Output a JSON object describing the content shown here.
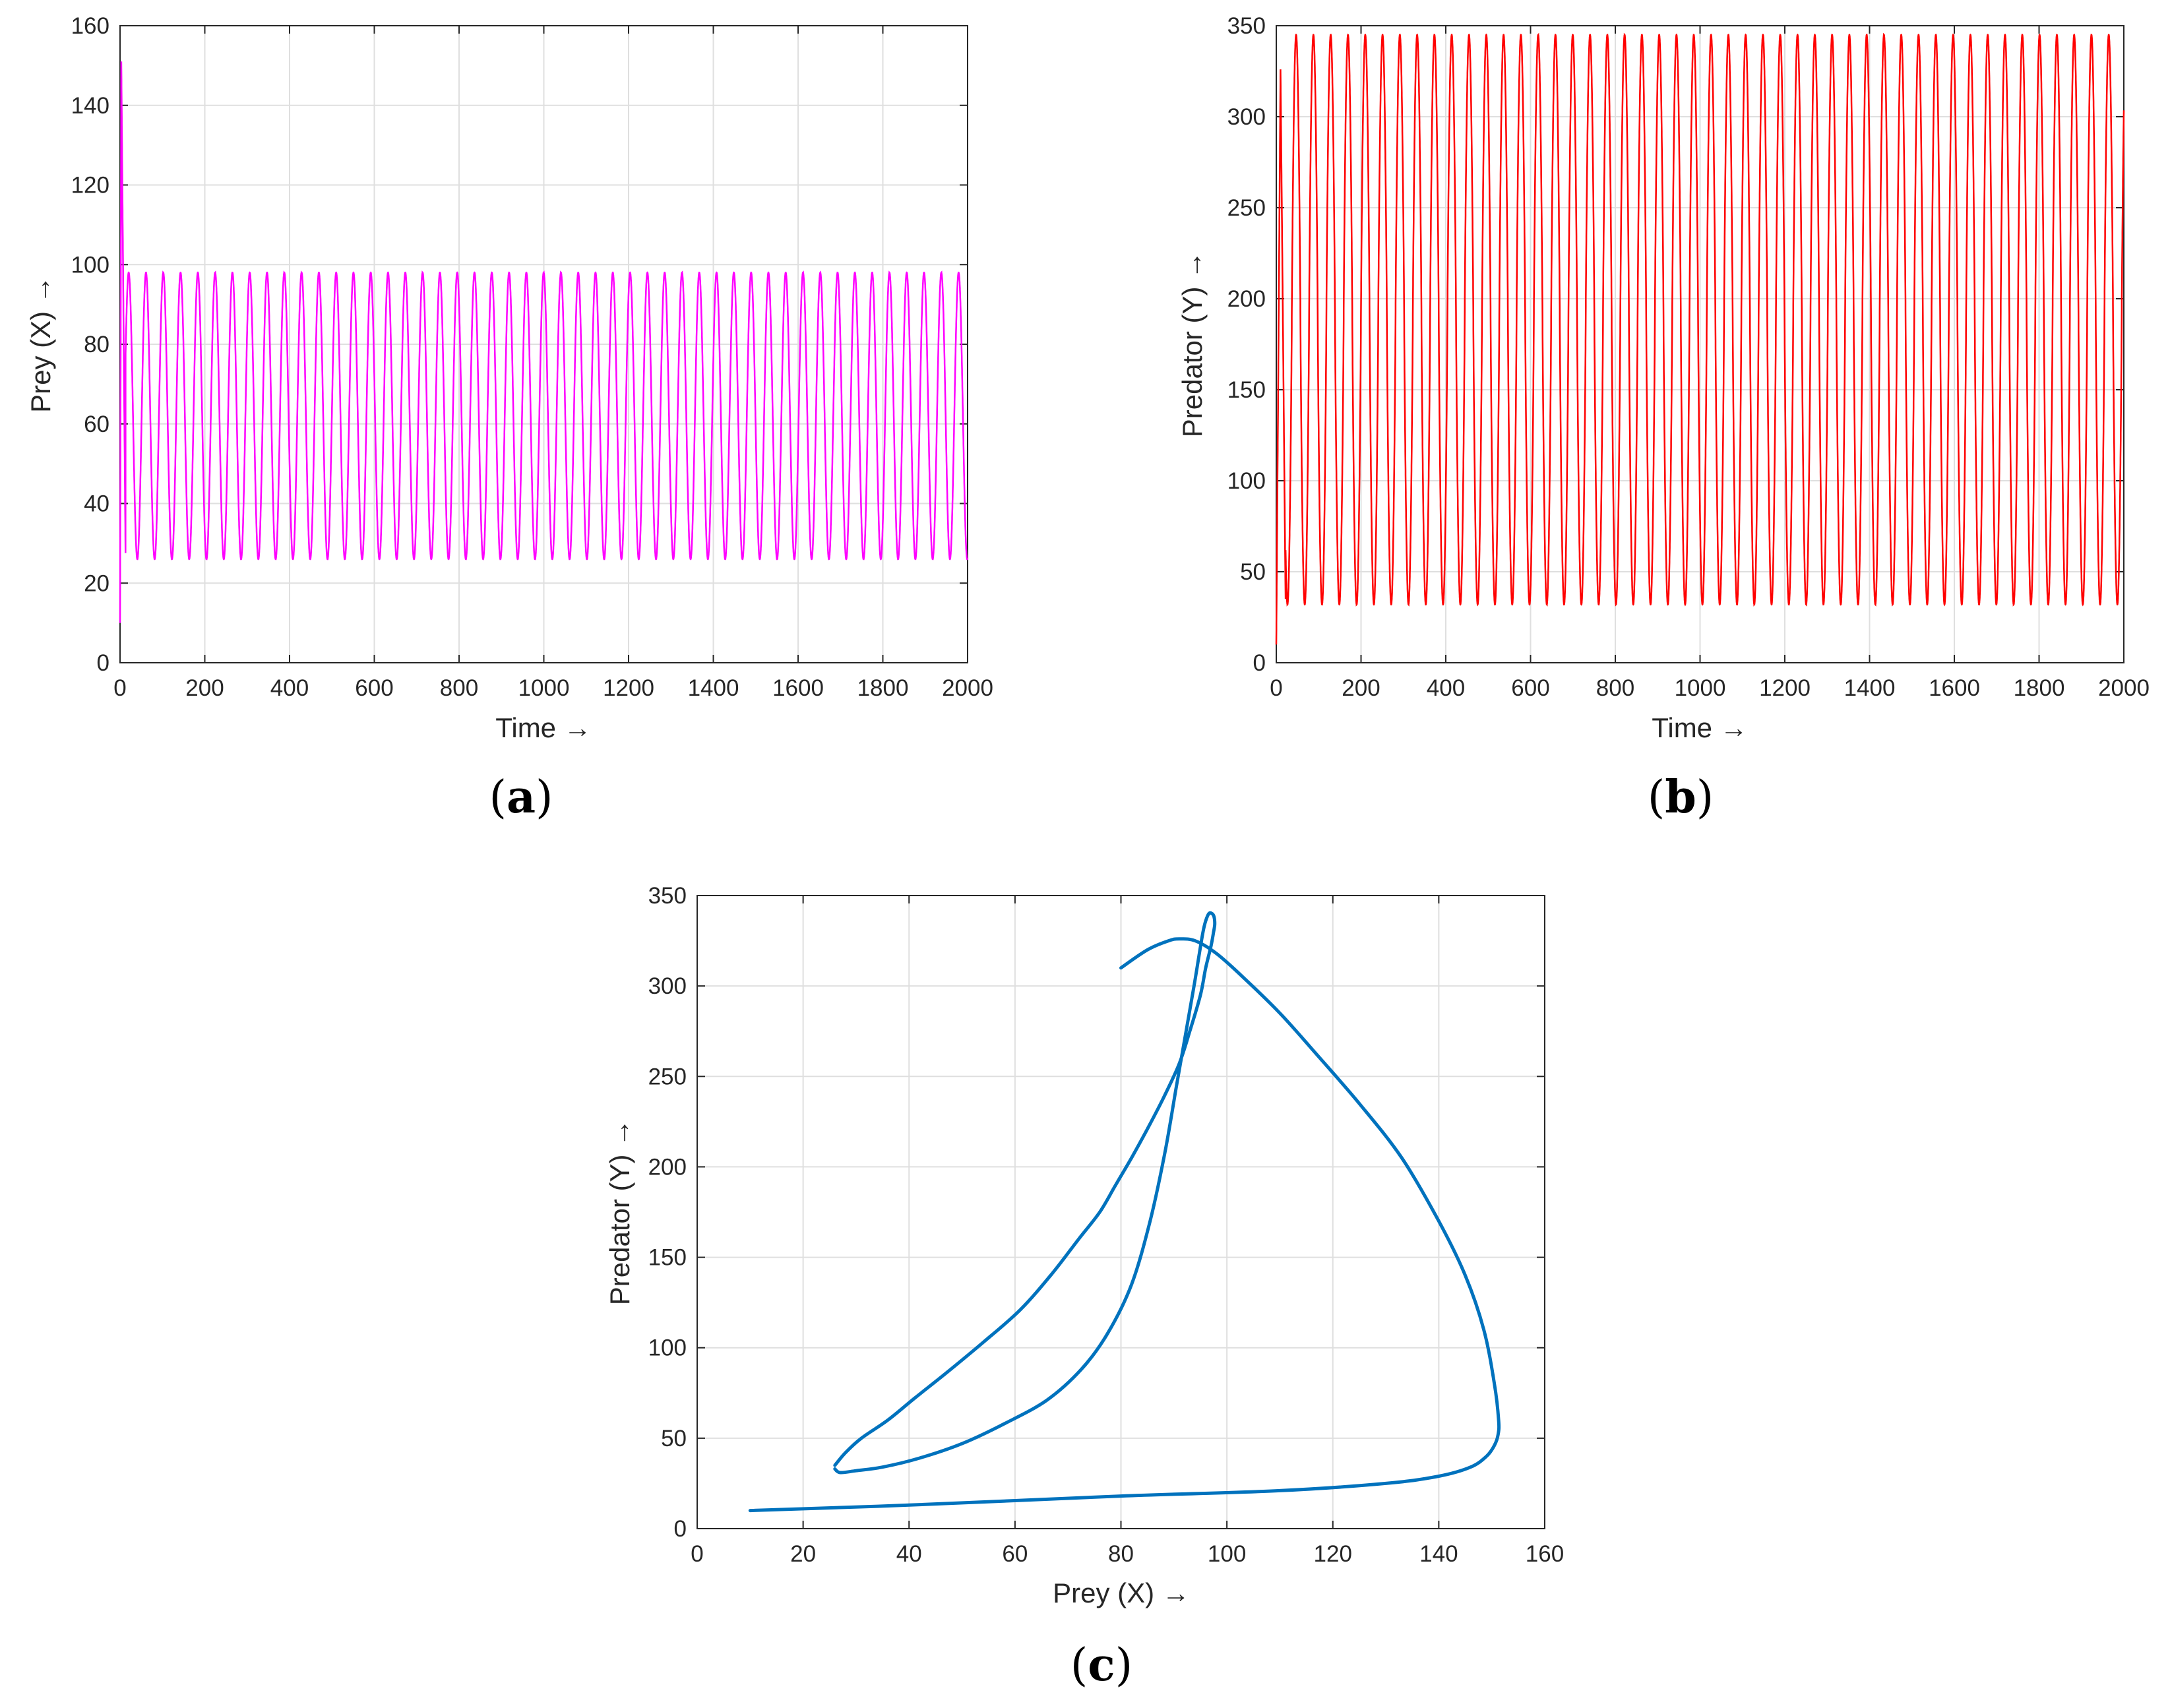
{
  "chart_data": [
    {
      "panel": "(a)",
      "type": "line",
      "xlabel": "Time →",
      "ylabel": "Prey (X) →",
      "xlim": [
        0,
        2000
      ],
      "ylim": [
        0,
        160
      ],
      "xticks": [
        0,
        200,
        400,
        600,
        800,
        1000,
        1200,
        1400,
        1600,
        1800,
        2000
      ],
      "yticks": [
        0,
        20,
        40,
        60,
        80,
        100,
        120,
        140,
        160
      ],
      "grid": true,
      "color": "#ff00ff",
      "series": [
        {
          "description_values": {
            "initial_value": 10,
            "initial_peak": 151,
            "steady_max": 98,
            "steady_min": 26,
            "period": 40.8,
            "t_end": 2000
          }
        }
      ]
    },
    {
      "panel": "(b)",
      "type": "line",
      "xlabel": "Time →",
      "ylabel": "Predator (Y) →",
      "xlim": [
        0,
        2000
      ],
      "ylim": [
        0,
        350
      ],
      "xticks": [
        0,
        200,
        400,
        600,
        800,
        1000,
        1200,
        1400,
        1600,
        1800,
        2000
      ],
      "yticks": [
        0,
        50,
        100,
        150,
        200,
        250,
        300,
        350
      ],
      "grid": true,
      "color": "#ff0000",
      "series": [
        {
          "description_values": {
            "initial_value": 10,
            "initial_peak": 326,
            "steady_max": 345,
            "steady_min": 32,
            "period": 40.8,
            "t_end": 2000
          }
        }
      ]
    },
    {
      "panel": "(c)",
      "type": "line",
      "xlabel": "Prey (X) →",
      "ylabel": "Predator (Y) →",
      "xlim": [
        0,
        160
      ],
      "ylim": [
        0,
        350
      ],
      "xticks": [
        0,
        20,
        40,
        60,
        80,
        100,
        120,
        140,
        160
      ],
      "yticks": [
        0,
        50,
        100,
        150,
        200,
        250,
        300,
        350
      ],
      "grid": true,
      "color": "#0072bd",
      "series": [
        {
          "x": [
            10,
            40,
            80,
            110,
            130,
            140,
            146,
            149,
            150.5,
            151.2,
            151.3,
            150.5,
            148.5,
            145,
            140,
            133,
            125,
            117,
            110,
            103,
            98,
            94,
            91,
            89,
            85,
            80
          ],
          "y": [
            10,
            13,
            18,
            21,
            25,
            29,
            34,
            40,
            46,
            52,
            60,
            80,
            110,
            140,
            170,
            205,
            235,
            262,
            285,
            305,
            318,
            325,
            326,
            325,
            320,
            310
          ]
        },
        {
          "x": [
            26,
            28,
            31,
            36,
            41,
            47,
            54,
            61,
            67,
            72,
            76,
            79,
            82,
            85,
            88,
            91,
            93,
            95,
            96,
            97,
            97.5,
            97.7,
            97.6,
            97.2,
            96.6,
            96,
            95.5,
            94.8,
            93.8,
            92.3,
            90.5,
            88.3,
            85.5,
            82,
            77.5,
            72.5,
            66,
            58,
            50,
            42,
            35,
            30,
            27,
            26
          ],
          "y": [
            35,
            42,
            50,
            60,
            72,
            86,
            103,
            121,
            141,
            160,
            175,
            190,
            205,
            221,
            238,
            257,
            275,
            295,
            310,
            322,
            330,
            334,
            338,
            340,
            340,
            336,
            330,
            318,
            300,
            275,
            245,
            208,
            170,
            135,
            108,
            88,
            71,
            58,
            47,
            39,
            34,
            32,
            31,
            33
          ]
        }
      ]
    }
  ],
  "labels": {
    "a": "(a)",
    "b": "(b)",
    "c": "(c)"
  }
}
